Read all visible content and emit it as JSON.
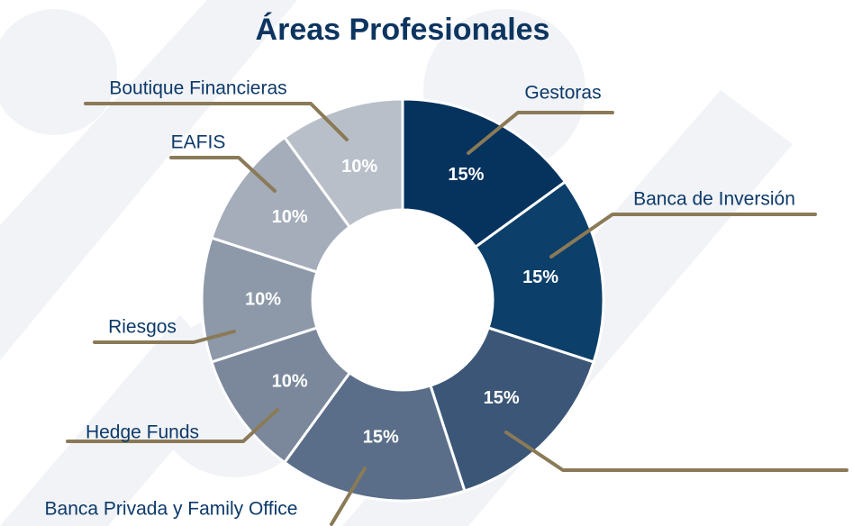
{
  "chart_data": {
    "type": "donut",
    "title": "Áreas Profesionales",
    "categories": [
      "Gestoras",
      "Banca de Inversión",
      null,
      "Banca Privada y Family Office",
      "Hedge Funds",
      "Riesgos",
      "EAFIS",
      "Boutique Financieras"
    ],
    "values": [
      15,
      15,
      15,
      15,
      10,
      10,
      10,
      10
    ],
    "value_labels": [
      "15%",
      "15%",
      "15%",
      "15%",
      "10%",
      "10%",
      "10%",
      "10%"
    ],
    "colors": [
      "#06325e",
      "#0c3f69",
      "#3b5677",
      "#5a6e89",
      "#7b889c",
      "#8d99a9",
      "#a5adba",
      "#b9bfc9"
    ]
  }
}
